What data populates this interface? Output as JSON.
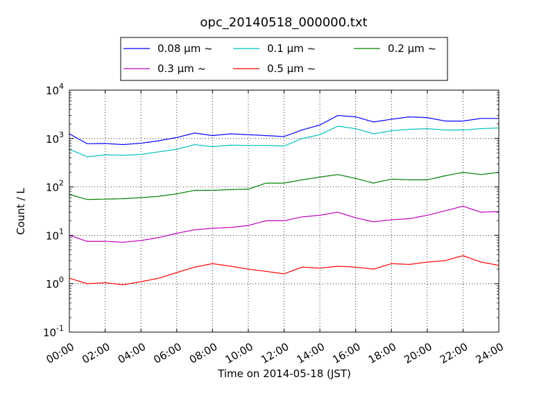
{
  "chart_data": {
    "type": "line",
    "title": "opc_20140518_000000.txt",
    "xlabel": "Time on 2014-05-18 (JST)",
    "ylabel": "Count / L",
    "xlim": [
      "00:00",
      "24:00"
    ],
    "ylim": [
      0.1,
      10000
    ],
    "yscale": "log",
    "grid": true,
    "legend_position": "top-center",
    "x_ticks": [
      "00:00",
      "02:00",
      "04:00",
      "06:00",
      "08:00",
      "10:00",
      "12:00",
      "14:00",
      "16:00",
      "18:00",
      "20:00",
      "22:00",
      "24:00"
    ],
    "y_ticks": [
      {
        "base": "10",
        "exp": "-1",
        "value": 0.1
      },
      {
        "base": "10",
        "exp": "0",
        "value": 1
      },
      {
        "base": "10",
        "exp": "1",
        "value": 10
      },
      {
        "base": "10",
        "exp": "2",
        "value": 100
      },
      {
        "base": "10",
        "exp": "3",
        "value": 1000
      },
      {
        "base": "10",
        "exp": "4",
        "value": 10000
      }
    ],
    "x_hours": [
      0,
      1,
      2,
      3,
      4,
      5,
      6,
      7,
      8,
      9,
      10,
      11,
      12,
      13,
      14,
      15,
      16,
      17,
      18,
      19,
      20,
      21,
      22,
      23,
      24
    ],
    "series": [
      {
        "name": "0.08 μm ~",
        "color": "#0000ff",
        "values": [
          1250,
          780,
          790,
          750,
          800,
          900,
          1050,
          1300,
          1150,
          1250,
          1200,
          1150,
          1100,
          1500,
          1900,
          3000,
          2800,
          2200,
          2500,
          2800,
          2700,
          2300,
          2300,
          2600,
          2600
        ]
      },
      {
        "name": "0.1 μm ~",
        "color": "#00bfbf",
        "values": [
          600,
          420,
          460,
          450,
          470,
          530,
          600,
          750,
          680,
          730,
          720,
          720,
          700,
          1000,
          1200,
          1800,
          1600,
          1250,
          1450,
          1550,
          1600,
          1500,
          1500,
          1600,
          1650
        ]
      },
      {
        "name": "0.2 μm ~",
        "color": "#008000",
        "values": [
          70,
          55,
          56,
          57,
          60,
          64,
          72,
          85,
          85,
          88,
          90,
          120,
          120,
          140,
          160,
          180,
          150,
          120,
          145,
          140,
          140,
          170,
          200,
          180,
          200
        ]
      },
      {
        "name": "0.3 μm ~",
        "color": "#bf00bf",
        "values": [
          10,
          7.5,
          7.5,
          7.2,
          7.8,
          9,
          11,
          13,
          14,
          14.5,
          16,
          20,
          20,
          24,
          26,
          30,
          23,
          19,
          21,
          22,
          26,
          32,
          40,
          30,
          31
        ]
      },
      {
        "name": "0.5 μm ~",
        "color": "#ff0000",
        "values": [
          1.3,
          1.0,
          1.05,
          0.95,
          1.1,
          1.3,
          1.7,
          2.2,
          2.6,
          2.3,
          2.0,
          1.8,
          1.6,
          2.2,
          2.1,
          2.3,
          2.2,
          2.0,
          2.6,
          2.5,
          2.8,
          3.0,
          3.8,
          2.8,
          2.4
        ]
      }
    ]
  }
}
